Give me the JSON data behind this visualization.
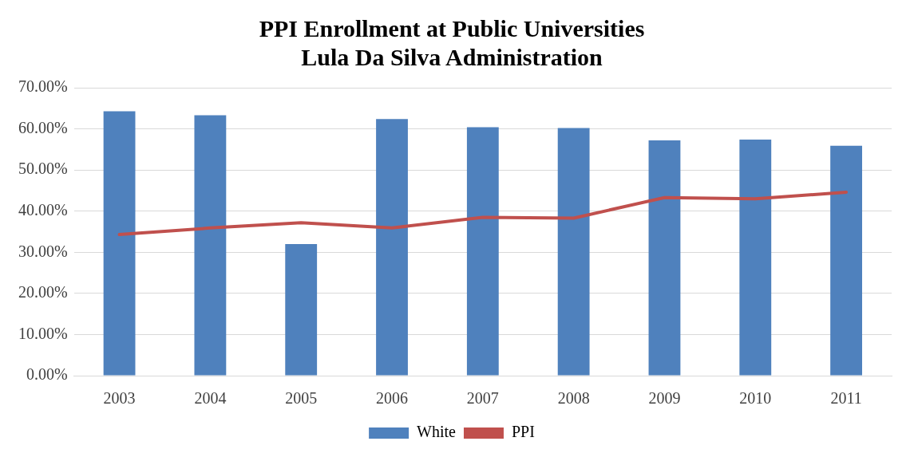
{
  "chart_data": {
    "type": "bar",
    "title": [
      "PPI Enrollment at Public Universities",
      "Lula Da Silva Administration"
    ],
    "categories": [
      "2003",
      "2004",
      "2005",
      "2006",
      "2007",
      "2008",
      "2009",
      "2010",
      "2011"
    ],
    "series": [
      {
        "name": "White",
        "color": "#4f81bd",
        "values": [
          64.3,
          63.3,
          32.0,
          62.4,
          60.4,
          60.2,
          57.2,
          57.4,
          55.9
        ]
      },
      {
        "name": "PPI",
        "type": "line",
        "color": "#c0504d",
        "values": [
          34.3,
          35.9,
          37.2,
          35.9,
          38.5,
          38.3,
          43.3,
          43.0,
          44.6
        ]
      }
    ],
    "ylim": [
      0,
      70
    ],
    "yticks": [
      {
        "value": 0,
        "label": "0.00%"
      },
      {
        "value": 10,
        "label": "10.00%"
      },
      {
        "value": 20,
        "label": "20.00%"
      },
      {
        "value": 30,
        "label": "30.00%"
      },
      {
        "value": 40,
        "label": "40.00%"
      },
      {
        "value": 50,
        "label": "50.00%"
      },
      {
        "value": 60,
        "label": "60.00%"
      },
      {
        "value": 70,
        "label": "70.00%"
      }
    ],
    "grid": "y",
    "legend": "bottom",
    "marker": "none"
  }
}
